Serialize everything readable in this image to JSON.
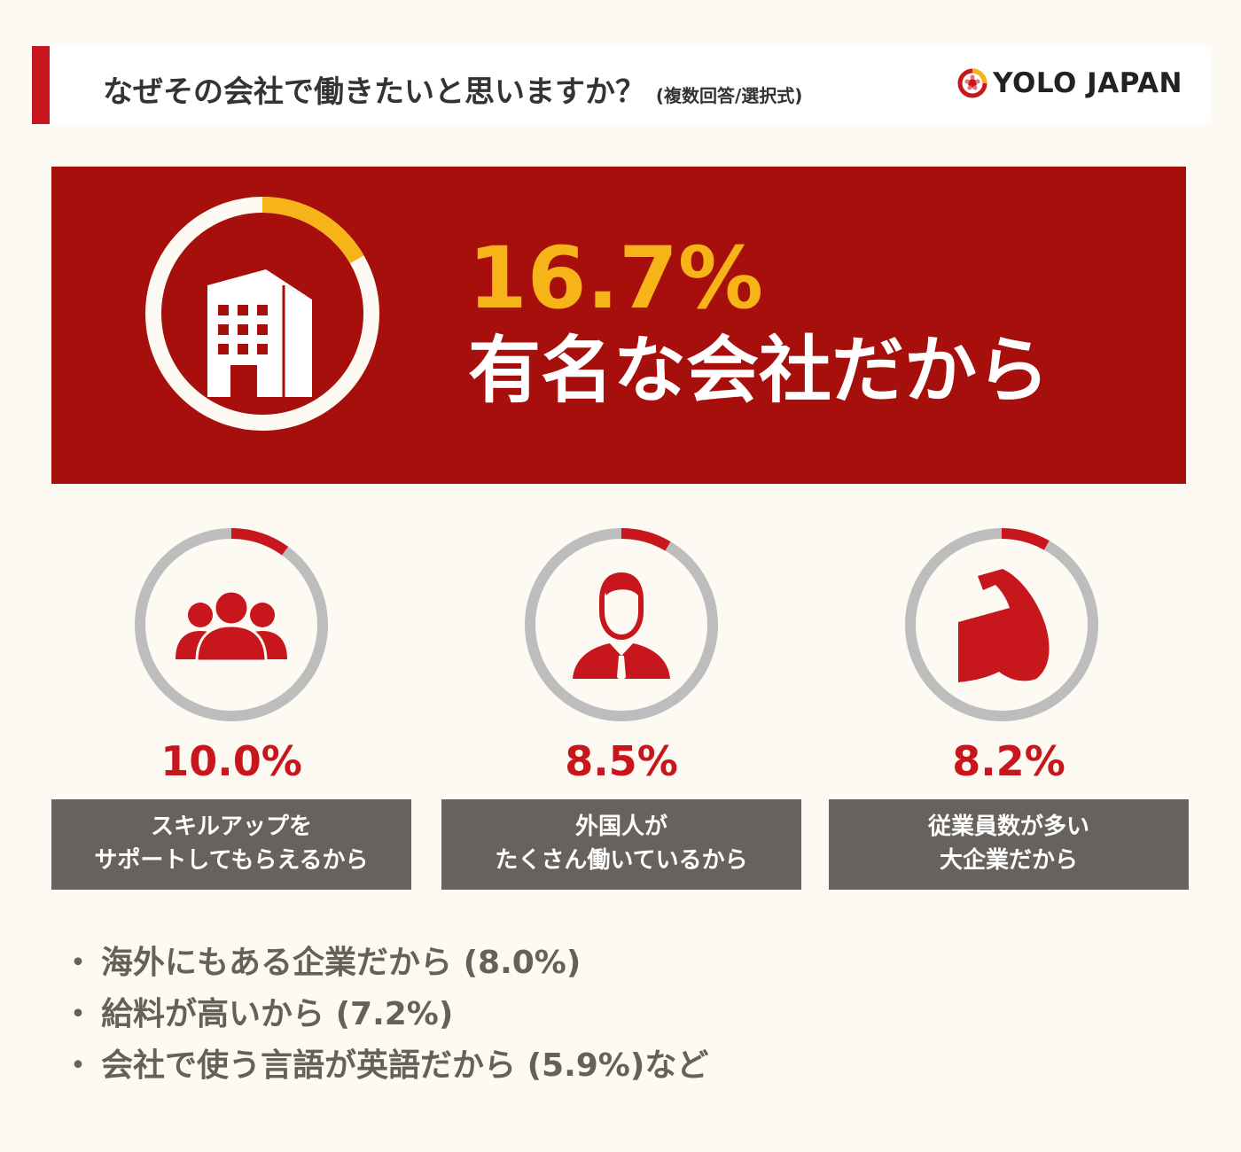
{
  "header": {
    "title": "なぜその会社で働きたいと思いますか？",
    "subtitle": "(複数回答/選択式)",
    "logo_text": "YOLO JAPAN"
  },
  "colors": {
    "brand_red": "#c8161d",
    "hero_bg": "#a60f0b",
    "hero_accent": "#f6b418",
    "ring_gray": "#bdbdbd",
    "label_bg": "#67625d",
    "page_bg": "#fdfaf3"
  },
  "chart_data": {
    "type": "pie",
    "title": "なぜその会社で働きたいと思いますか？",
    "subtitle": "(複数回答/選択式)",
    "series": [
      {
        "label": "有名な会社だから",
        "value": 16.7,
        "display": "16.7%",
        "icon": "office-building-icon"
      },
      {
        "label_lines": [
          "スキルアップを",
          "サポートしてもらえるから"
        ],
        "value": 10.0,
        "display": "10.0%",
        "icon": "group-people-icon"
      },
      {
        "label_lines": [
          "外国人が",
          "たくさん働いているから"
        ],
        "value": 8.5,
        "display": "8.5%",
        "icon": "businessman-icon"
      },
      {
        "label_lines": [
          "従業員数が多い",
          "大企業だから"
        ],
        "value": 8.2,
        "display": "8.2%",
        "icon": "flexed-arm-icon"
      }
    ],
    "others": [
      {
        "label": "海外にもある企業だから",
        "value": 8.0,
        "display": "(8.0%)",
        "suffix": ""
      },
      {
        "label": "給料が高いから",
        "value": 7.2,
        "display": "(7.2%)",
        "suffix": ""
      },
      {
        "label": "会社で使う言語が英語だから",
        "value": 5.9,
        "display": "(5.9%)",
        "suffix": "など"
      }
    ]
  }
}
